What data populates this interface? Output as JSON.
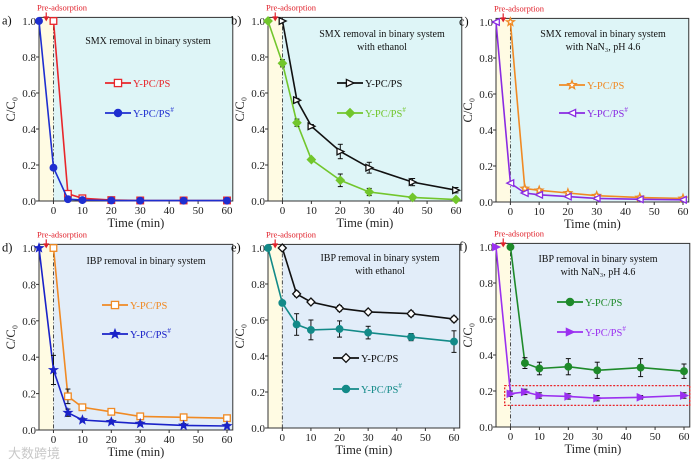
{
  "pre_label": "Pre-adsorption",
  "xlabel": "Time (min)",
  "ylabel": "C/C₀",
  "watermark": "大数跨境",
  "colors": {
    "pre_region": "#fffbe3",
    "top_row_bg": "#def5f7",
    "bottom_row_bg": "#e2edf9",
    "pre_text": "#e0202a"
  },
  "chart_data": [
    {
      "panel": "a)",
      "type": "line",
      "title": [
        "SMX removal in binary system"
      ],
      "xlim": [
        -5,
        62
      ],
      "ylim": [
        0,
        1.02
      ],
      "xticks": [
        0,
        10,
        20,
        30,
        40,
        50,
        60
      ],
      "yticks": [
        "0.0",
        "0.2",
        "0.4",
        "0.6",
        "0.8",
        "1.0"
      ],
      "series": [
        {
          "name": "Y-PC/PS",
          "sup": "",
          "color": "#e8262b",
          "marker": "square-open",
          "x": [
            0,
            5,
            10,
            20,
            30,
            45,
            60
          ],
          "y": [
            1.0,
            0.04,
            0.015,
            0.005,
            0.003,
            0.003,
            0.003
          ],
          "err": [
            0,
            0.005,
            0.005,
            0,
            0,
            0,
            0
          ]
        },
        {
          "name": "Y-PC/PS",
          "sup": "#",
          "color": "#1f2fd0",
          "marker": "circle-filled",
          "x": [
            -5,
            0,
            5,
            10,
            20,
            30,
            45,
            60
          ],
          "y": [
            1.0,
            0.185,
            0.01,
            0.005,
            0.003,
            0.002,
            0.002,
            0.002
          ],
          "err": [
            0,
            0.01,
            0.005,
            0,
            0,
            0,
            0,
            0
          ]
        }
      ]
    },
    {
      "panel": "b)",
      "type": "line",
      "title": [
        "SMX removal in binary system",
        "with ethanol"
      ],
      "xlim": [
        -5,
        62
      ],
      "ylim": [
        0,
        1.02
      ],
      "xticks": [
        0,
        10,
        20,
        30,
        40,
        50,
        60
      ],
      "yticks": [
        "0.0",
        "0.2",
        "0.4",
        "0.6",
        "0.8",
        "1.0"
      ],
      "series": [
        {
          "name": "Y-PC/PS",
          "sup": "",
          "color": "#111111",
          "marker": "triangle-right-open",
          "x": [
            0,
            5,
            10,
            20,
            30,
            45,
            60
          ],
          "y": [
            1.0,
            0.56,
            0.415,
            0.275,
            0.185,
            0.105,
            0.06
          ],
          "err": [
            0,
            0.01,
            0.01,
            0.04,
            0.03,
            0.02,
            0.015
          ]
        },
        {
          "name": "Y-PC/PS",
          "sup": "#",
          "color": "#72c62c",
          "marker": "diamond-filled",
          "x": [
            -5,
            0,
            5,
            10,
            20,
            30,
            45,
            60
          ],
          "y": [
            1.0,
            0.765,
            0.435,
            0.23,
            0.115,
            0.05,
            0.02,
            0.008
          ],
          "err": [
            0,
            0.02,
            0.02,
            0.01,
            0.035,
            0.02,
            0.01,
            0.005
          ]
        }
      ]
    },
    {
      "panel": "c)",
      "type": "line",
      "title": [
        "SMX removal in binary system",
        "with NaN₃, pH 4.6"
      ],
      "xlim": [
        -5,
        62
      ],
      "ylim": [
        0,
        1.02
      ],
      "xticks": [
        0,
        10,
        20,
        30,
        40,
        50,
        60
      ],
      "yticks": [
        "0.0",
        "0.2",
        "0.4",
        "0.6",
        "0.8",
        "1.0"
      ],
      "series": [
        {
          "name": "Y-PC/PS",
          "sup": "",
          "color": "#f08a24",
          "marker": "star-open",
          "x": [
            0,
            5,
            10,
            20,
            30,
            45,
            60
          ],
          "y": [
            1.0,
            0.075,
            0.065,
            0.05,
            0.035,
            0.025,
            0.02
          ],
          "err": [
            0,
            0.008,
            0.008,
            0.008,
            0.008,
            0.008,
            0.008
          ]
        },
        {
          "name": "Y-PC/PS",
          "sup": "#",
          "color": "#8a2be2",
          "marker": "triangle-left-open",
          "x": [
            -5,
            0,
            5,
            10,
            20,
            30,
            45,
            60
          ],
          "y": [
            1.0,
            0.105,
            0.05,
            0.04,
            0.03,
            0.02,
            0.015,
            0.012
          ],
          "err": [
            0,
            0.005,
            0.005,
            0.005,
            0.005,
            0.005,
            0.005,
            0.005
          ]
        }
      ]
    },
    {
      "panel": "d)",
      "type": "line",
      "title": [
        "IBP removal in binary system"
      ],
      "xlim": [
        -5,
        62
      ],
      "ylim": [
        0,
        1.02
      ],
      "xticks": [
        0,
        10,
        20,
        30,
        40,
        50,
        60
      ],
      "yticks": [
        "0.0",
        "0.2",
        "0.4",
        "0.6",
        "0.8",
        "1.0"
      ],
      "series": [
        {
          "name": "Y-PC/PS",
          "sup": "",
          "color": "#f08a24",
          "marker": "square-open",
          "x": [
            0,
            5,
            10,
            20,
            30,
            45,
            60
          ],
          "y": [
            1.0,
            0.185,
            0.125,
            0.1,
            0.075,
            0.07,
            0.065
          ],
          "err": [
            0,
            0.04,
            0.015,
            0.015,
            0.01,
            0.01,
            0.01
          ]
        },
        {
          "name": "Y-PC/PS",
          "sup": "#",
          "color": "#1a22c8",
          "marker": "star-filled",
          "x": [
            -5,
            0,
            5,
            10,
            20,
            30,
            45,
            60
          ],
          "y": [
            1.0,
            0.33,
            0.095,
            0.055,
            0.045,
            0.035,
            0.025,
            0.022
          ],
          "err": [
            0,
            0.08,
            0.02,
            0.01,
            0.01,
            0.01,
            0.01,
            0.01
          ]
        }
      ]
    },
    {
      "panel": "e)",
      "type": "line",
      "title": [
        "IBP removal in binary system",
        "with ethanol"
      ],
      "xlim": [
        -5,
        62
      ],
      "ylim": [
        0,
        1.02
      ],
      "xticks": [
        0,
        10,
        20,
        30,
        40,
        50,
        60
      ],
      "yticks": [
        "0.0",
        "0.2",
        "0.4",
        "0.6",
        "0.8",
        "1.0"
      ],
      "series": [
        {
          "name": "Y-PC/PS",
          "sup": "",
          "color": "#111111",
          "marker": "diamond-open",
          "x": [
            0,
            5,
            10,
            20,
            30,
            45,
            60
          ],
          "y": [
            1.0,
            0.745,
            0.7,
            0.665,
            0.645,
            0.635,
            0.605
          ],
          "err": [
            0,
            0.015,
            0.01,
            0.015,
            0.01,
            0.015,
            0.015
          ]
        },
        {
          "name": "Y-PC/PS",
          "sup": "#",
          "color": "#138a88",
          "marker": "circle-filled",
          "x": [
            -5,
            0,
            5,
            10,
            20,
            30,
            45,
            60
          ],
          "y": [
            1.0,
            0.695,
            0.575,
            0.545,
            0.55,
            0.53,
            0.505,
            0.48
          ],
          "err": [
            0,
            0.01,
            0.06,
            0.055,
            0.045,
            0.035,
            0.02,
            0.06
          ]
        }
      ]
    },
    {
      "panel": "f)",
      "type": "line",
      "title": [
        "IBP removal in binary system",
        "with NaN₃, pH 4.6"
      ],
      "xlim": [
        -5,
        62
      ],
      "ylim": [
        0,
        1.02
      ],
      "xticks": [
        0,
        10,
        20,
        30,
        40,
        50,
        60
      ],
      "yticks": [
        "0.0",
        "0.2",
        "0.4",
        "0.6",
        "0.8",
        "1.0"
      ],
      "highlight_box": {
        "x": [
          -2,
          62
        ],
        "y": [
          0.12,
          0.23
        ],
        "color": "#e8262b"
      },
      "series": [
        {
          "name": "Y-PC/PS",
          "sup": "",
          "color": "#1e8a2a",
          "marker": "circle-filled",
          "x": [
            0,
            5,
            10,
            20,
            30,
            45,
            60
          ],
          "y": [
            1.0,
            0.355,
            0.325,
            0.335,
            0.315,
            0.33,
            0.31
          ],
          "err": [
            0,
            0.03,
            0.035,
            0.045,
            0.045,
            0.05,
            0.04
          ]
        },
        {
          "name": "Y-PC/PS",
          "sup": "#",
          "color": "#9b30f0",
          "marker": "triangle-right-filled",
          "x": [
            -5,
            0,
            5,
            10,
            20,
            30,
            45,
            60
          ],
          "y": [
            1.0,
            0.185,
            0.195,
            0.175,
            0.17,
            0.16,
            0.165,
            0.175
          ],
          "err": [
            0,
            0.015,
            0.015,
            0.015,
            0.015,
            0.015,
            0.01,
            0.015
          ]
        }
      ]
    }
  ]
}
